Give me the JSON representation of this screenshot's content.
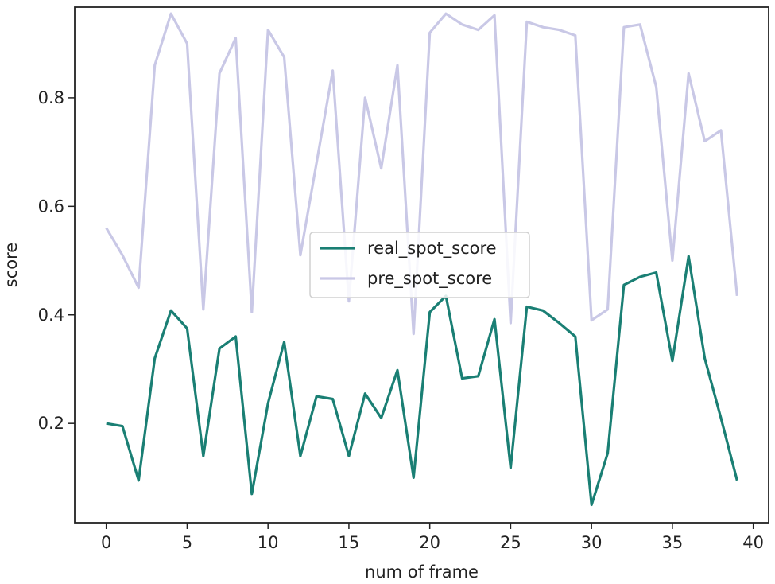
{
  "chart_data": {
    "type": "line",
    "title": "",
    "xlabel": "num of frame",
    "ylabel": "score",
    "xlim": [
      -1.95,
      40.95
    ],
    "ylim": [
      0.017,
      0.967
    ],
    "xticks": [
      0,
      5,
      10,
      15,
      20,
      25,
      30,
      35,
      40
    ],
    "yticks": [
      0.2,
      0.4,
      0.6,
      0.8
    ],
    "ytick_labels": [
      "0.2",
      "0.4",
      "0.6",
      "0.8"
    ],
    "grid": false,
    "legend": "center",
    "x": [
      0,
      1,
      2,
      3,
      4,
      5,
      6,
      7,
      8,
      9,
      10,
      11,
      12,
      13,
      14,
      15,
      16,
      17,
      18,
      19,
      20,
      21,
      22,
      23,
      24,
      25,
      26,
      27,
      28,
      29,
      30,
      31,
      32,
      33,
      34,
      35,
      36,
      37,
      38,
      39
    ],
    "series": [
      {
        "name": "real_spot_score",
        "color": "#1a7f74",
        "values": [
          0.2,
          0.195,
          0.095,
          0.32,
          0.408,
          0.375,
          0.14,
          0.338,
          0.36,
          0.07,
          0.237,
          0.35,
          0.14,
          0.25,
          0.245,
          0.14,
          0.255,
          0.21,
          0.298,
          0.1,
          0.405,
          0.435,
          0.283,
          0.287,
          0.392,
          0.118,
          0.415,
          0.408,
          0.385,
          0.36,
          0.05,
          0.145,
          0.455,
          0.47,
          0.478,
          0.315,
          0.508,
          0.32,
          0.21,
          0.095
        ]
      },
      {
        "name": "pre_spot_score",
        "color": "#c9c8e6",
        "values": [
          0.56,
          0.51,
          0.45,
          0.86,
          0.955,
          0.9,
          0.41,
          0.845,
          0.91,
          0.405,
          0.925,
          0.875,
          0.51,
          0.68,
          0.85,
          0.425,
          0.8,
          0.67,
          0.86,
          0.365,
          0.92,
          0.955,
          0.935,
          0.925,
          0.952,
          0.385,
          0.94,
          0.93,
          0.925,
          0.915,
          0.39,
          0.41,
          0.93,
          0.935,
          0.82,
          0.5,
          0.845,
          0.72,
          0.74,
          0.435
        ]
      }
    ]
  }
}
